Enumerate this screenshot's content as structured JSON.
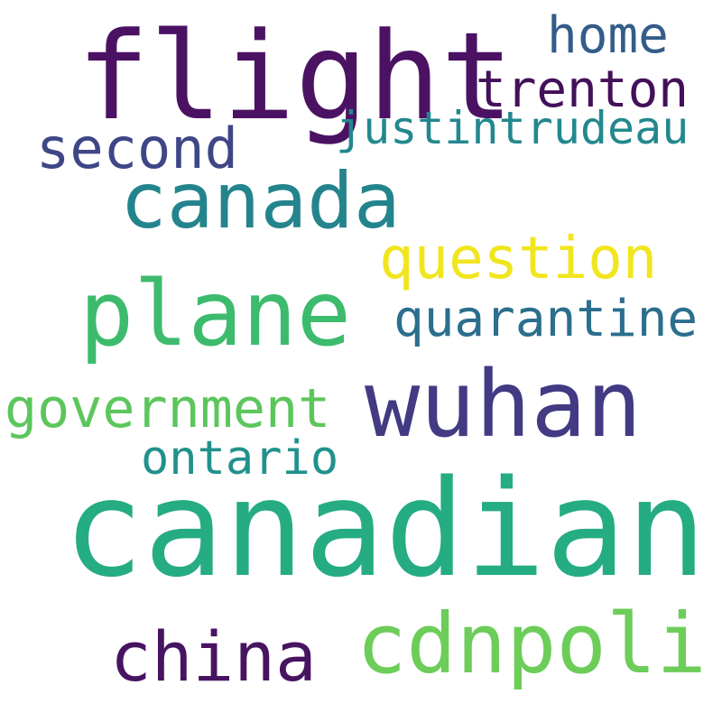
{
  "words": [
    {
      "id": "flight",
      "text": "flight",
      "color": "#4b1263"
    },
    {
      "id": "home",
      "text": "home",
      "color": "#345c8a"
    },
    {
      "id": "trenton",
      "text": "trenton",
      "color": "#43105a"
    },
    {
      "id": "justintrudeau",
      "text": "justintrudeau",
      "color": "#23888e"
    },
    {
      "id": "second",
      "text": "second",
      "color": "#3f4686"
    },
    {
      "id": "canada",
      "text": "canada",
      "color": "#23848d"
    },
    {
      "id": "question",
      "text": "question",
      "color": "#f1e51d"
    },
    {
      "id": "plane",
      "text": "plane",
      "color": "#3dbb6d"
    },
    {
      "id": "quarantine",
      "text": "quarantine",
      "color": "#2b6e8d"
    },
    {
      "id": "wuhan",
      "text": "wuhan",
      "color": "#433a84"
    },
    {
      "id": "government",
      "text": "government",
      "color": "#5cc65c"
    },
    {
      "id": "ontario",
      "text": "ontario",
      "color": "#21918c"
    },
    {
      "id": "canadian",
      "text": "canadian",
      "color": "#25ac82"
    },
    {
      "id": "china",
      "text": "china",
      "color": "#471461"
    },
    {
      "id": "cdnpoli",
      "text": "cdnpoli",
      "color": "#6ccd59"
    }
  ]
}
